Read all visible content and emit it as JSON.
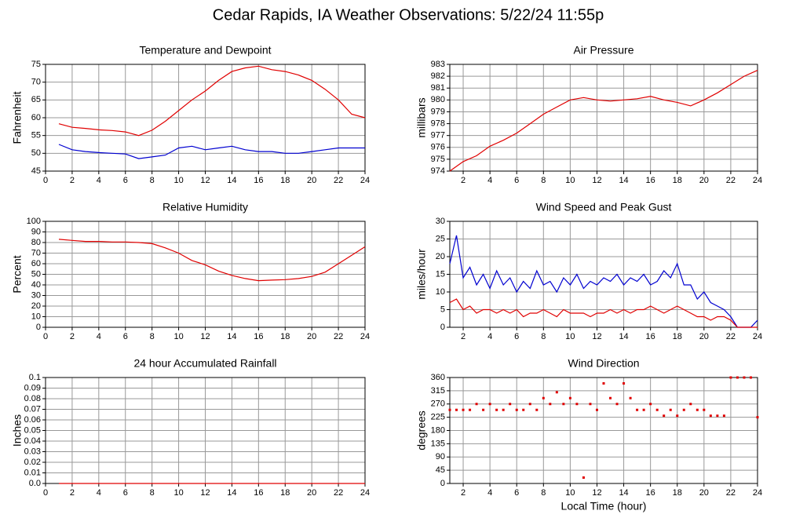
{
  "title": "Cedar Rapids, IA Weather Observations: 5/22/24 11:55p",
  "chart_data": [
    {
      "type": "line",
      "title": "Temperature and Dewpoint",
      "ylabel": "Fahrenheit",
      "x": [
        1,
        2,
        3,
        4,
        5,
        6,
        7,
        8,
        9,
        10,
        11,
        12,
        13,
        14,
        15,
        16,
        17,
        18,
        19,
        20,
        21,
        22,
        23,
        24
      ],
      "series": [
        {
          "name": "Temperature",
          "color": "#e00000",
          "values": [
            58.3,
            57.3,
            57,
            56.6,
            56.4,
            56,
            55,
            56.5,
            59,
            62,
            65,
            67.5,
            70.5,
            73,
            74,
            74.5,
            73.5,
            73,
            72,
            70.5,
            68,
            65,
            61,
            60
          ]
        },
        {
          "name": "Dewpoint",
          "color": "#0000d0",
          "values": [
            52.5,
            51,
            50.5,
            50.2,
            50,
            49.8,
            48.5,
            49,
            49.5,
            51.5,
            52,
            51,
            51.5,
            52,
            51,
            50.5,
            50.5,
            50,
            50,
            50.5,
            51,
            51.5,
            51.5,
            51.5
          ]
        }
      ],
      "xlim": [
        0,
        24
      ],
      "xticks": [
        0,
        2,
        4,
        6,
        8,
        10,
        12,
        14,
        16,
        18,
        20,
        22,
        24
      ],
      "ylim": [
        45,
        75
      ],
      "yticks": [
        45,
        50,
        55,
        60,
        65,
        70,
        75
      ],
      "grid": true
    },
    {
      "type": "line",
      "title": "Air Pressure",
      "ylabel": "millibars",
      "x": [
        1,
        2,
        3,
        4,
        5,
        6,
        7,
        8,
        9,
        10,
        11,
        12,
        13,
        14,
        15,
        16,
        17,
        18,
        19,
        20,
        21,
        22,
        23,
        24
      ],
      "series": [
        {
          "name": "Pressure",
          "color": "#e00000",
          "values": [
            974,
            974.8,
            975.3,
            976.1,
            976.6,
            977.2,
            978,
            978.8,
            979.4,
            980,
            980.2,
            980,
            979.9,
            980,
            980.1,
            980.3,
            980,
            979.8,
            979.5,
            980,
            980.6,
            981.3,
            982,
            982.5
          ]
        }
      ],
      "xlim": [
        1,
        24
      ],
      "xticks": [
        2,
        4,
        6,
        8,
        10,
        12,
        14,
        16,
        18,
        20,
        22,
        24
      ],
      "ylim": [
        974,
        983
      ],
      "yticks": [
        974,
        975,
        976,
        977,
        978,
        979,
        980,
        981,
        982,
        983
      ],
      "grid": true
    },
    {
      "type": "line",
      "title": "Relative Humidity",
      "ylabel": "Percent",
      "x": [
        1,
        2,
        3,
        4,
        5,
        6,
        7,
        8,
        9,
        10,
        11,
        12,
        13,
        14,
        15,
        16,
        17,
        18,
        19,
        20,
        21,
        22,
        23,
        24
      ],
      "series": [
        {
          "name": "Humidity",
          "color": "#e00000",
          "values": [
            83,
            82,
            81,
            81,
            80.5,
            80.5,
            80,
            79,
            75,
            70,
            63,
            59,
            53,
            49,
            46,
            44,
            44.5,
            45,
            46,
            48,
            52,
            60,
            68,
            76
          ]
        }
      ],
      "xlim": [
        0,
        24
      ],
      "xticks": [
        0,
        2,
        4,
        6,
        8,
        10,
        12,
        14,
        16,
        18,
        20,
        22,
        24
      ],
      "ylim": [
        0,
        100
      ],
      "yticks": [
        0,
        10,
        20,
        30,
        40,
        50,
        60,
        70,
        80,
        90,
        100
      ],
      "grid": true
    },
    {
      "type": "line",
      "title": "Wind Speed and Peak Gust",
      "ylabel": "miles/hour",
      "x": [
        1,
        1.5,
        2,
        2.5,
        3,
        3.5,
        4,
        4.5,
        5,
        5.5,
        6,
        6.5,
        7,
        7.5,
        8,
        8.5,
        9,
        9.5,
        10,
        10.5,
        11,
        11.5,
        12,
        12.5,
        13,
        13.5,
        14,
        14.5,
        15,
        15.5,
        16,
        16.5,
        17,
        17.5,
        18,
        18.5,
        19,
        19.5,
        20,
        20.5,
        21,
        21.5,
        22,
        22.5,
        23,
        23.5,
        24
      ],
      "series": [
        {
          "name": "Peak Gust",
          "color": "#0000d0",
          "values": [
            18,
            26,
            14,
            17,
            12,
            15,
            11,
            16,
            12,
            14,
            10,
            13,
            11,
            16,
            12,
            13,
            10,
            14,
            12,
            15,
            11,
            13,
            12,
            14,
            13,
            15,
            12,
            14,
            13,
            15,
            12,
            13,
            16,
            14,
            18,
            12,
            12,
            8,
            10,
            7,
            6,
            5,
            3,
            0,
            0,
            0,
            2
          ]
        },
        {
          "name": "Wind Speed",
          "color": "#e00000",
          "values": [
            7,
            8,
            5,
            6,
            4,
            5,
            5,
            4,
            5,
            4,
            5,
            3,
            4,
            4,
            5,
            4,
            3,
            5,
            4,
            4,
            4,
            3,
            4,
            4,
            5,
            4,
            5,
            4,
            5,
            5,
            6,
            5,
            4,
            5,
            6,
            5,
            4,
            3,
            3,
            2,
            3,
            3,
            2,
            0,
            0,
            0,
            0
          ]
        }
      ],
      "xlim": [
        1,
        24
      ],
      "xticks": [
        2,
        4,
        6,
        8,
        10,
        12,
        14,
        16,
        18,
        20,
        22,
        24
      ],
      "ylim": [
        0,
        30
      ],
      "yticks": [
        0,
        5,
        10,
        15,
        20,
        25,
        30
      ],
      "grid": true
    },
    {
      "type": "line",
      "title": "24 hour Accumulated Rainfall",
      "ylabel": "Inches",
      "x": [
        1,
        24
      ],
      "series": [
        {
          "name": "Rainfall",
          "color": "#e00000",
          "values": [
            0,
            0
          ]
        }
      ],
      "xlim": [
        0,
        24
      ],
      "xticks": [
        0,
        2,
        4,
        6,
        8,
        10,
        12,
        14,
        16,
        18,
        20,
        22,
        24
      ],
      "ylim": [
        0,
        0.1
      ],
      "yticks": [
        {
          "value": 0,
          "label": "0.0"
        },
        0.01,
        0.02,
        0.03,
        0.04,
        0.05,
        0.06,
        0.07,
        0.08,
        0.09,
        0.1
      ],
      "grid": true
    },
    {
      "type": "scatter",
      "title": "Wind Direction",
      "ylabel": "degrees",
      "xlabel": "Local Time (hour)",
      "x": [
        1,
        1.5,
        2,
        2.5,
        3,
        3.5,
        4,
        4.5,
        5,
        5.5,
        6,
        6.5,
        7,
        7.5,
        8,
        8.5,
        9,
        9.5,
        10,
        10.5,
        11,
        11.5,
        12,
        12.5,
        13,
        13.5,
        14,
        14.5,
        15,
        15.5,
        16,
        16.5,
        17,
        17.5,
        18,
        18.5,
        19,
        19.5,
        20,
        20.5,
        21,
        21.5,
        22,
        22.5,
        23,
        23.5,
        24
      ],
      "series": [
        {
          "name": "Direction",
          "color": "#e00000",
          "values": [
            250,
            250,
            250,
            250,
            270,
            250,
            270,
            250,
            250,
            270,
            250,
            250,
            270,
            250,
            290,
            270,
            310,
            270,
            290,
            270,
            20,
            270,
            250,
            340,
            290,
            270,
            340,
            290,
            250,
            250,
            270,
            250,
            230,
            250,
            230,
            250,
            270,
            250,
            250,
            230,
            230,
            230,
            360,
            360,
            360,
            360,
            225
          ]
        }
      ],
      "xlim": [
        1,
        24
      ],
      "xticks": [
        2,
        4,
        6,
        8,
        10,
        12,
        14,
        16,
        18,
        20,
        22,
        24
      ],
      "ylim": [
        0,
        360
      ],
      "yticks": [
        0,
        45,
        90,
        135,
        180,
        225,
        270,
        315,
        360
      ],
      "grid": true
    }
  ]
}
